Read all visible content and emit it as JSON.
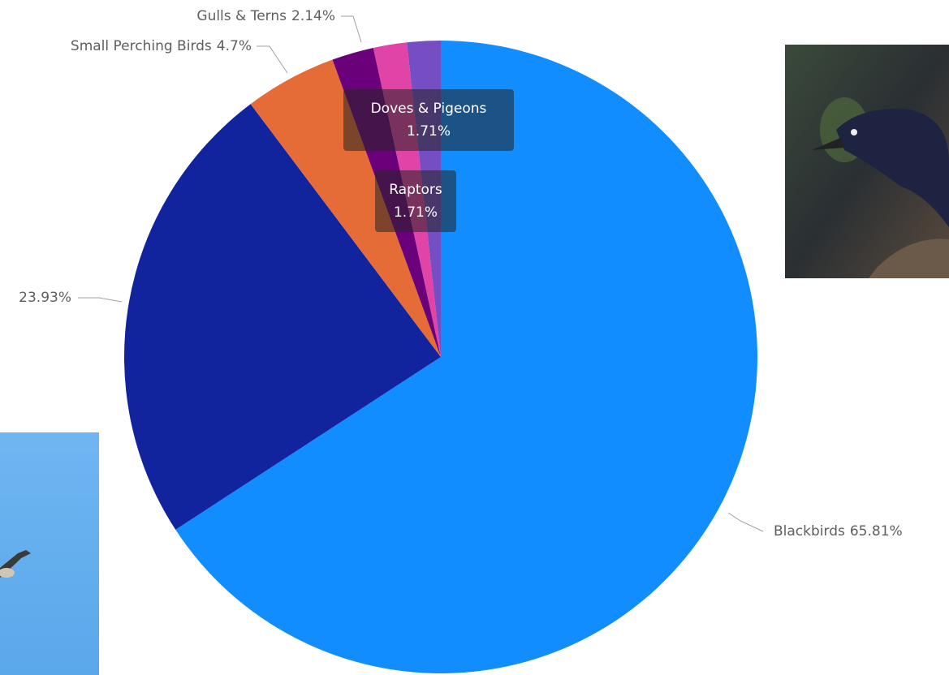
{
  "chart_data": {
    "type": "pie",
    "categories": [
      "Blackbirds",
      null,
      "Small Perching Birds",
      "Gulls & Terns",
      "Doves & Pigeons",
      "Raptors"
    ],
    "values": [
      65.81,
      23.93,
      4.7,
      2.14,
      1.71,
      1.71
    ],
    "value_labels": [
      "65.81%",
      "23.93%",
      "4.7%",
      "2.14%",
      "1.71%",
      "1.71%"
    ],
    "colors": [
      "#118dff",
      "#12239e",
      "#e66c37",
      "#6b007b",
      "#e044a7",
      "#744ec2"
    ]
  }
}
